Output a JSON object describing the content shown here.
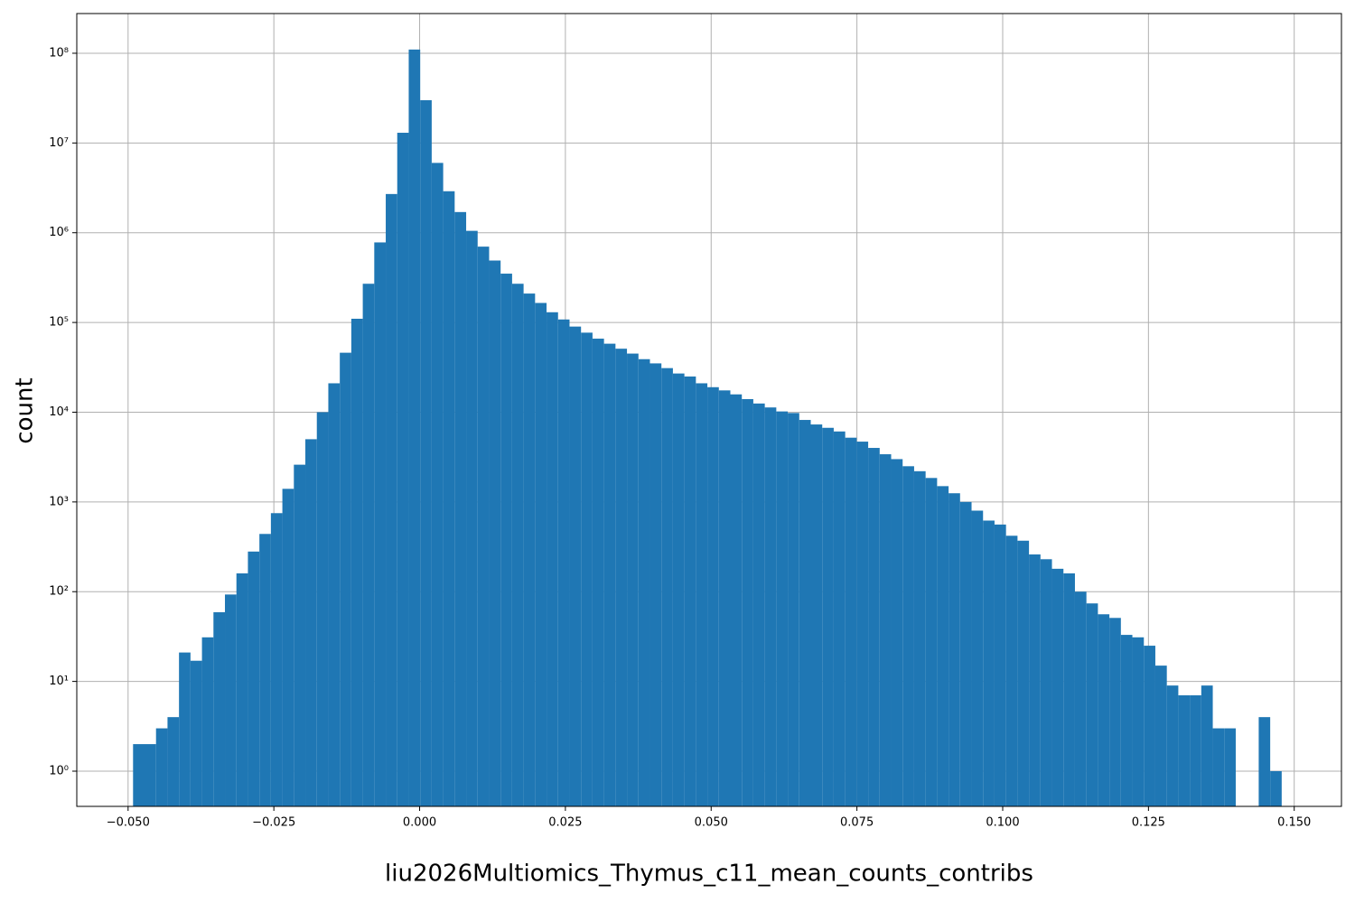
{
  "chart_data": {
    "type": "histogram",
    "xlabel": "liu2026Multiomics_Thymus_c11_mean_counts_contribs",
    "ylabel": "count",
    "color": "#1f77b4",
    "grid": true,
    "yscale": "log",
    "xlim": [
      -0.0588,
      0.1581
    ],
    "ylim": [
      0.405,
      277000000
    ],
    "xticks": [
      {
        "value": -0.05,
        "label": "−0.050"
      },
      {
        "value": -0.025,
        "label": "−0.025"
      },
      {
        "value": 0,
        "label": "0.000"
      },
      {
        "value": 0.025,
        "label": "0.025"
      },
      {
        "value": 0.05,
        "label": "0.050"
      },
      {
        "value": 0.075,
        "label": "0.075"
      },
      {
        "value": 0.1,
        "label": "0.100"
      },
      {
        "value": 0.125,
        "label": "0.125"
      },
      {
        "value": 0.15,
        "label": "0.150"
      }
    ],
    "yticks": [
      {
        "value": 1,
        "label": "10⁰"
      },
      {
        "value": 10,
        "label": "10¹"
      },
      {
        "value": 100,
        "label": "10²"
      },
      {
        "value": 1000,
        "label": "10³"
      },
      {
        "value": 10000,
        "label": "10⁴"
      },
      {
        "value": 100000,
        "label": "10⁵"
      },
      {
        "value": 1000000,
        "label": "10⁶"
      },
      {
        "value": 10000000,
        "label": "10⁷"
      },
      {
        "value": 100000000,
        "label": "10⁸"
      }
    ],
    "bins": [
      -0.04915,
      -0.04718,
      -0.04521,
      -0.04324,
      -0.04127,
      -0.0393,
      -0.03733,
      -0.03536,
      -0.03339,
      -0.03142,
      -0.02945,
      -0.02748,
      -0.02551,
      -0.02354,
      -0.02157,
      -0.0196,
      -0.01763,
      -0.01566,
      -0.01369,
      -0.01172,
      -0.00975,
      -0.00778,
      -0.00581,
      -0.00384,
      -0.00187,
      0.0001,
      0.00207,
      0.00404,
      0.00601,
      0.00798,
      0.00995,
      0.01192,
      0.01389,
      0.01586,
      0.01783,
      0.0198,
      0.02177,
      0.02374,
      0.02571,
      0.02768,
      0.02965,
      0.03162,
      0.03359,
      0.03556,
      0.03753,
      0.0395,
      0.04147,
      0.04344,
      0.04541,
      0.04738,
      0.04935,
      0.05132,
      0.05329,
      0.05526,
      0.05723,
      0.0592,
      0.06117,
      0.06314,
      0.06511,
      0.06708,
      0.06905,
      0.07102,
      0.07299,
      0.07496,
      0.07693,
      0.0789,
      0.08087,
      0.08284,
      0.08481,
      0.08678,
      0.08875,
      0.09072,
      0.09269,
      0.09466,
      0.09663,
      0.0986,
      0.10057,
      0.10254,
      0.10451,
      0.10648,
      0.10845,
      0.11042,
      0.11239,
      0.11436,
      0.11633,
      0.1183,
      0.12027,
      0.12224,
      0.12421,
      0.12618,
      0.12815,
      0.13012,
      0.13209,
      0.13406,
      0.13603,
      0.138,
      0.13997,
      0.14194,
      0.14391,
      0.14588,
      0.14785
    ],
    "values": [
      2,
      2,
      3,
      4,
      21,
      17,
      31,
      59,
      93,
      160,
      280,
      440,
      750,
      1400,
      2600,
      5000,
      10000,
      21000,
      46000,
      110000,
      270000,
      780000,
      2700000,
      13000000,
      110000000,
      30000000,
      6000000,
      2900000,
      1700000,
      1050000,
      700000,
      490000,
      350000,
      270000,
      210000,
      165000,
      130000,
      108000,
      90000,
      77000,
      66000,
      58000,
      51000,
      45000,
      39000,
      35000,
      31000,
      27000,
      25000,
      21000,
      19000,
      17500,
      15800,
      14000,
      12500,
      11300,
      10200,
      9800,
      8200,
      7300,
      6700,
      6100,
      5200,
      4700,
      4000,
      3400,
      3000,
      2500,
      2200,
      1850,
      1500,
      1250,
      1000,
      800,
      620,
      560,
      420,
      370,
      260,
      230,
      180,
      160,
      100,
      74,
      56,
      51,
      33,
      31,
      25,
      15,
      9,
      7,
      7,
      9,
      3,
      3,
      0,
      0,
      4,
      1
    ]
  }
}
